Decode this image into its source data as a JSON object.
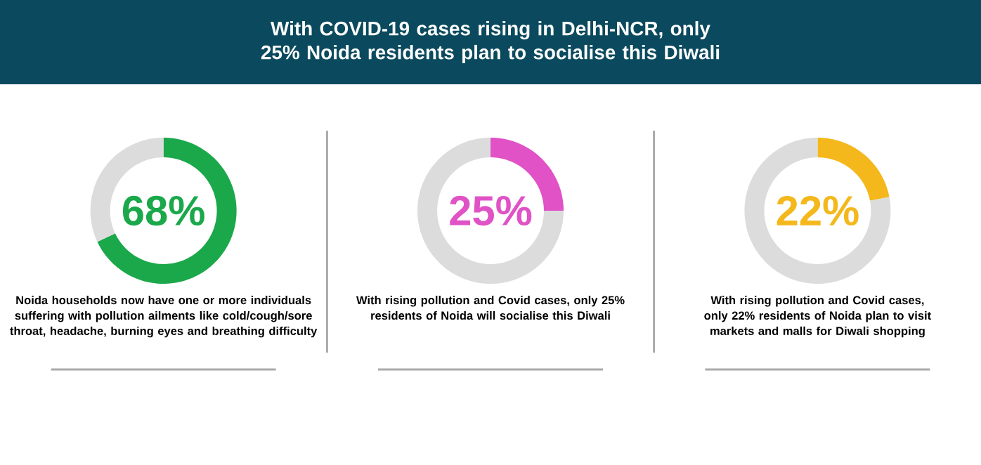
{
  "chart_data": [
    {
      "type": "other",
      "title": "With COVID-19 cases rising in Delhi-NCR, only 25% Noida residents plan to socialise this Diwali"
    },
    {
      "type": "donut",
      "categories": [
        null,
        null
      ],
      "values": [
        68,
        32
      ],
      "colors": [
        "#1ba84b",
        "#dcdcdc"
      ],
      "value_labels": [
        "68%",
        null
      ],
      "annotations": [
        "Noida households now have one or more individuals suffering with pollution ailments like cold/cough/sore throat, headache, burning eyes and breathing difficulty"
      ]
    },
    {
      "type": "donut",
      "categories": [
        null,
        null
      ],
      "values": [
        25,
        75
      ],
      "colors": [
        "#e052c6",
        "#dcdcdc"
      ],
      "value_labels": [
        "25%",
        null
      ],
      "annotations": [
        "With rising pollution and Covid cases, only 25% residents of Noida will socialise this Diwali"
      ]
    },
    {
      "type": "donut",
      "categories": [
        null,
        null
      ],
      "values": [
        22,
        78
      ],
      "colors": [
        "#f4b81c",
        "#dcdcdc"
      ],
      "value_labels": [
        "22%",
        null
      ],
      "annotations": [
        "With rising pollution and Covid cases, only 22% residents of Noida plan to visit markets and malls for Diwali shopping"
      ]
    }
  ]
}
